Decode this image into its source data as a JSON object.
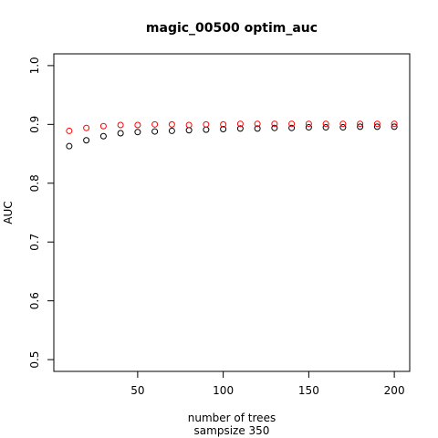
{
  "chart_data": {
    "type": "scatter",
    "title": "magic_00500 optim_auc",
    "xlabel": "number of trees",
    "xlabel2": "sampsize 350",
    "ylabel": "AUC",
    "xlim": [
      1,
      209
    ],
    "ylim": [
      0.48,
      1.02
    ],
    "x_ticks": [
      50,
      100,
      150,
      200
    ],
    "y_ticks": [
      0.5,
      0.6,
      0.7,
      0.8,
      0.9,
      1.0
    ],
    "x_tick_labels": [
      "50",
      "100",
      "150",
      "200"
    ],
    "y_tick_labels": [
      "0.5",
      "0.6",
      "0.7",
      "0.8",
      "0.9",
      "1.0"
    ],
    "grid": false,
    "series": [
      {
        "color": "#000000",
        "x": [
          10,
          20,
          30,
          40,
          50,
          60,
          70,
          80,
          90,
          100,
          110,
          120,
          130,
          140,
          150,
          160,
          170,
          180,
          190,
          200
        ],
        "y": [
          0.863,
          0.873,
          0.88,
          0.885,
          0.887,
          0.888,
          0.889,
          0.89,
          0.891,
          0.892,
          0.893,
          0.893,
          0.894,
          0.894,
          0.895,
          0.895,
          0.895,
          0.896,
          0.896,
          0.896
        ]
      },
      {
        "color": "#ff0000",
        "x": [
          10,
          20,
          30,
          40,
          50,
          60,
          70,
          80,
          90,
          100,
          110,
          120,
          130,
          140,
          150,
          160,
          170,
          180,
          190,
          200
        ],
        "y": [
          0.889,
          0.894,
          0.897,
          0.899,
          0.899,
          0.9,
          0.9,
          0.899,
          0.9,
          0.9,
          0.901,
          0.901,
          0.901,
          0.901,
          0.901,
          0.901,
          0.901,
          0.901,
          0.901,
          0.901
        ]
      }
    ]
  }
}
